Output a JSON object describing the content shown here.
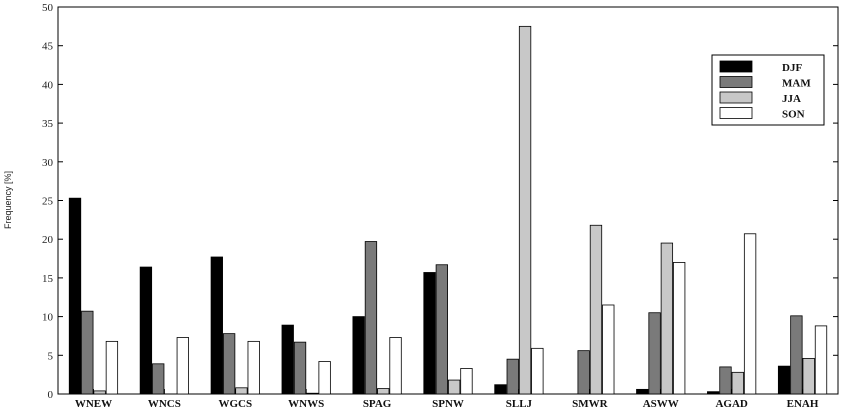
{
  "chart_data": {
    "type": "bar",
    "title": "",
    "xlabel": "",
    "ylabel": "Frequency [%]",
    "ylim": [
      0,
      50
    ],
    "yticks": [
      0,
      5,
      10,
      15,
      20,
      25,
      30,
      35,
      40,
      45,
      50
    ],
    "grid": false,
    "legend_position": "top-right",
    "categories": [
      "WNEW",
      "WNCS",
      "WGCS",
      "WNWS",
      "SPAG",
      "SPNW",
      "SLLJ",
      "SMWR",
      "ASWW",
      "AGAD",
      "ENAH"
    ],
    "series": [
      {
        "name": "DJF",
        "color": "#000000",
        "values": [
          25.3,
          16.4,
          17.7,
          8.9,
          10.0,
          15.7,
          1.2,
          0.0,
          0.6,
          0.3,
          3.6
        ]
      },
      {
        "name": "MAM",
        "color": "#7a7a7a",
        "values": [
          10.7,
          3.9,
          7.8,
          6.7,
          19.7,
          16.7,
          4.5,
          5.6,
          10.5,
          3.5,
          10.1
        ]
      },
      {
        "name": "JJA",
        "color": "#c8c8c8",
        "values": [
          0.4,
          0.0,
          0.8,
          0.1,
          0.7,
          1.8,
          47.5,
          21.8,
          19.5,
          2.8,
          4.6
        ]
      },
      {
        "name": "SON",
        "color": "#ffffff",
        "values": [
          6.8,
          7.3,
          6.8,
          4.2,
          7.3,
          3.3,
          5.9,
          11.5,
          17.0,
          20.7,
          8.8
        ]
      }
    ]
  }
}
